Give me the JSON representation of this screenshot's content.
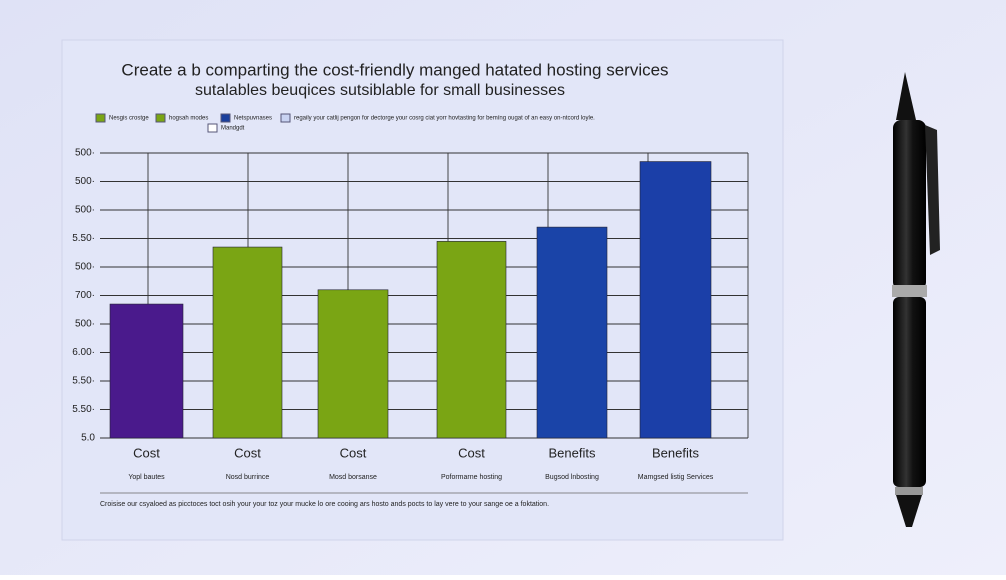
{
  "chart_data": {
    "type": "bar",
    "title": "Create a b comparting the cost-friendly manged hatated hosting services",
    "subtitle": "sutalables beuqices sutsiblable for small businesses",
    "legend": [
      {
        "label": "Nesgis crostge",
        "color": "#7aa514"
      },
      {
        "label": "hogsah modes",
        "color": "#7aa514"
      },
      {
        "label": "Netspuvnases",
        "color": "#1a3f9c"
      },
      {
        "label": "Mandgdt",
        "color": "#ffffff"
      },
      {
        "label": "regaily your catlij pengon for dectorge your cosrg ciat yorr hovtasting for bemíng ougat of an easy on-ntcord loyle.",
        "color": "#c9d3f2"
      }
    ],
    "categories": [
      "Cost",
      "Cost",
      "Cost",
      "Cost",
      "Benefits",
      "Benefits"
    ],
    "sublabels": [
      "Yopl bautes",
      "Nosd burrince",
      "Mosd borsanse",
      "Poformarne hosting",
      "Bugsod lnbosting",
      "Mamgsed listig Services"
    ],
    "values": [
      4.7,
      6.7,
      5.2,
      6.9,
      7.4,
      9.7
    ],
    "colors": [
      "#4a1a8c",
      "#7aa514",
      "#7aa514",
      "#7aa514",
      "#1a44a8",
      "#1b3fa8"
    ],
    "ylim": [
      0,
      10
    ],
    "yticks": [
      {
        "value": 0,
        "label": "5.0"
      },
      {
        "value": 1,
        "label": "5.50·"
      },
      {
        "value": 2,
        "label": "5.50·"
      },
      {
        "value": 3,
        "label": "6.00·"
      },
      {
        "value": 4,
        "label": "500·"
      },
      {
        "value": 5,
        "label": "700·"
      },
      {
        "value": 6,
        "label": "500·"
      },
      {
        "value": 7,
        "label": "5.50·"
      },
      {
        "value": 8,
        "label": "500·"
      },
      {
        "value": 9,
        "label": "500·"
      },
      {
        "value": 10,
        "label": "500·"
      }
    ],
    "grid": true,
    "footer": "Croisise our csyaloed as picctoces toct osih your your toz your mucke lo ore cooing ars hosto ands pocts to lay vere to your sange oe a foktation."
  }
}
